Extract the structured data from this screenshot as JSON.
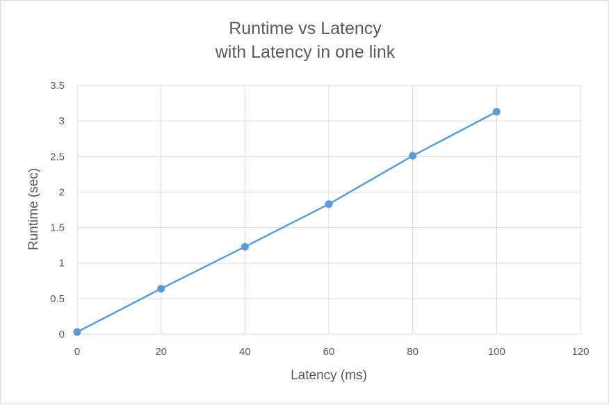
{
  "chart_data": {
    "type": "line",
    "title_line1": "Runtime vs Latency",
    "title_line2": "with Latency in one link",
    "xlabel": "Latency (ms)",
    "ylabel": "Runtime (sec)",
    "xlim": [
      0,
      120
    ],
    "ylim": [
      0,
      3.5
    ],
    "x_ticks": [
      "0",
      "20",
      "40",
      "60",
      "80",
      "100",
      "120"
    ],
    "y_ticks": [
      "0",
      "0.5",
      "1",
      "1.5",
      "2",
      "2.5",
      "3",
      "3.5"
    ],
    "grid": true,
    "legend": false,
    "series": [
      {
        "color": "#5b9bd5",
        "x": [
          0,
          20,
          40,
          60,
          80,
          100
        ],
        "y": [
          0.03,
          0.64,
          1.23,
          1.83,
          2.51,
          3.13
        ]
      }
    ]
  }
}
